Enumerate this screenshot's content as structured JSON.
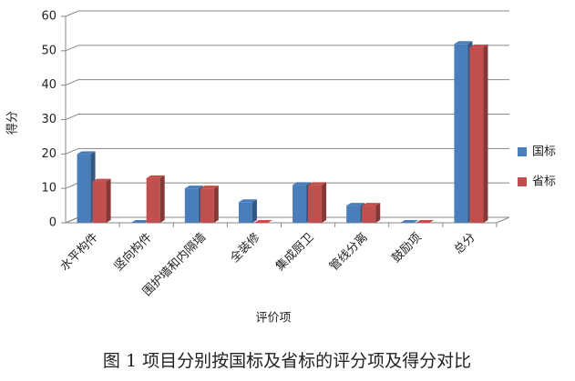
{
  "chart_data": {
    "type": "bar",
    "ylabel": "得分",
    "xlabel": "评价项",
    "caption": "图 1 项目分别按国标及省标的评分项及得分对比",
    "categories": [
      "水平构件",
      "竖向构件",
      "围护墙和内隔墙",
      "全装修",
      "集成厨卫",
      "管线分离",
      "鼓励项",
      "总分"
    ],
    "series": [
      {
        "name": "国标",
        "color": "#4a7ebb",
        "values": [
          20,
          0,
          10,
          6,
          11,
          5,
          0,
          52
        ]
      },
      {
        "name": "省标",
        "color": "#c0504d",
        "values": [
          12,
          13,
          10,
          0,
          11,
          5,
          0,
          51
        ]
      }
    ],
    "ylim": [
      0,
      60
    ],
    "yticks": [
      0,
      10,
      20,
      30,
      40,
      50,
      60
    ],
    "grid": true,
    "legend": "right"
  }
}
